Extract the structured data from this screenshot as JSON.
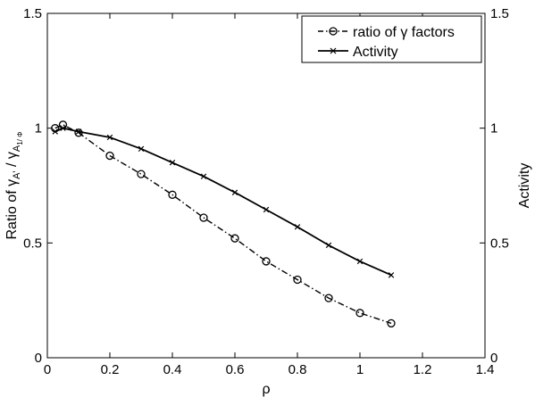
{
  "chart_data": {
    "type": "line",
    "xlabel": "ρ",
    "ylabel_left": {
      "prefix": "Ratio of γ",
      "sub1": "A'",
      "mid": " / γ",
      "sub2": "A",
      "subsub2": "1/ Φ"
    },
    "ylabel_right": "Activity",
    "xlim": [
      0,
      1.4
    ],
    "ylim_left": [
      0,
      1.5
    ],
    "ylim_right": [
      0,
      1.5
    ],
    "x_ticks": [
      "0",
      "0.2",
      "0.4",
      "0.6",
      "0.8",
      "1",
      "1.2",
      "1.4"
    ],
    "y_ticks_left": [
      "0",
      "0.5",
      "1",
      "1.5"
    ],
    "y_ticks_right": [
      "0",
      "0.5",
      "1",
      "1.5"
    ],
    "legend_position": "top-right",
    "series": [
      {
        "name": "ratio of γ factors",
        "style": "dash-dot",
        "marker": "circle",
        "color": "#000000",
        "x": [
          0.025,
          0.05,
          0.1,
          0.2,
          0.3,
          0.4,
          0.5,
          0.6,
          0.7,
          0.8,
          0.9,
          1.0,
          1.1
        ],
        "y": [
          1.0,
          1.015,
          0.98,
          0.88,
          0.8,
          0.71,
          0.61,
          0.52,
          0.42,
          0.34,
          0.26,
          0.195,
          0.15
        ]
      },
      {
        "name": "Activity",
        "style": "solid",
        "marker": "x",
        "color": "#000000",
        "x": [
          0.025,
          0.05,
          0.1,
          0.2,
          0.3,
          0.4,
          0.5,
          0.6,
          0.7,
          0.8,
          0.9,
          1.0,
          1.1
        ],
        "y": [
          0.985,
          1.0,
          0.985,
          0.96,
          0.91,
          0.85,
          0.79,
          0.72,
          0.645,
          0.57,
          0.49,
          0.42,
          0.36
        ]
      }
    ]
  }
}
